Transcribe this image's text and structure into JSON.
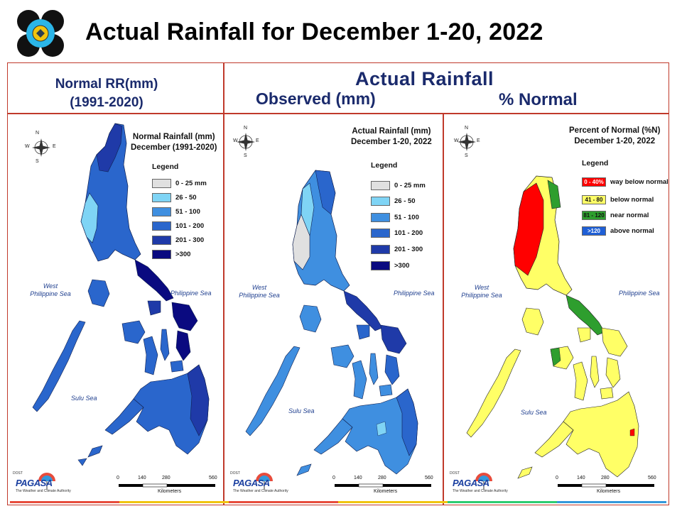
{
  "header": {
    "title": "Actual Rainfall for December 1-20, 2022",
    "normal_line1": "Normal RR(mm)",
    "normal_line2": "(1991-2020)",
    "actual": "Actual Rainfall",
    "observed": "Observed (mm)",
    "percent": "% Normal"
  },
  "colors": {
    "frame": "#c0392b",
    "heading": "#1a2a6c",
    "blue_scale": [
      "#e0e0e0",
      "#7fd4f5",
      "#3f8fe0",
      "#2a66cc",
      "#1f3aa8",
      "#0a0a80"
    ],
    "percent_scale": [
      "#ff0000",
      "#ffff66",
      "#2e9e2e",
      "#1f5fd6"
    ]
  },
  "icons": [
    "logo-icon",
    "compass-rose-icon",
    "pagasa-logo-icon"
  ],
  "compass": {
    "n": "N",
    "s": "S",
    "e": "E",
    "w": "W"
  },
  "scale": {
    "ticks": [
      "0",
      "140",
      "280",
      "560"
    ],
    "unit": "Kilometers"
  },
  "pagasa": {
    "dost": "DOST",
    "name": "PAGASA",
    "tagline": "The Weather and Climate Authority"
  },
  "panels": {
    "normal": {
      "title_line1": "Normal Rainfall (mm)",
      "title_line2": "December (1991-2020)",
      "legend_title": "Legend",
      "legend": [
        "0 - 25 mm",
        "26 - 50",
        "51 - 100",
        "101 - 200",
        "201 - 300",
        ">300"
      ],
      "seas": {
        "west": "West\nPhilippine Sea",
        "east": "Philippine Sea",
        "sulu": "Sulu Sea"
      }
    },
    "actual": {
      "title_line1": "Actual Rainfall (mm)",
      "title_line2": "December 1-20, 2022",
      "legend_title": "Legend",
      "legend": [
        "0 - 25 mm",
        "26 - 50",
        "51 - 100",
        "101 - 200",
        "201 - 300",
        ">300"
      ],
      "seas": {
        "west": "West\nPhilippine Sea",
        "east": "Philippine Sea",
        "sulu": "Sulu Sea"
      }
    },
    "percent": {
      "title_line1": "Percent of Normal (%N)",
      "title_line2": "December 1-20, 2022",
      "legend_title": "Legend",
      "legend": [
        {
          "range": "0 - 40%",
          "label": "way below normal"
        },
        {
          "range": "41 - 80",
          "label": "below normal"
        },
        {
          "range": "81 - 120",
          "label": "near normal"
        },
        {
          "range": ">120",
          "label": "above normal"
        }
      ],
      "seas": {
        "west": "West\nPhilippine Sea",
        "east": "Philippine Sea",
        "sulu": "Sulu Sea"
      }
    }
  }
}
